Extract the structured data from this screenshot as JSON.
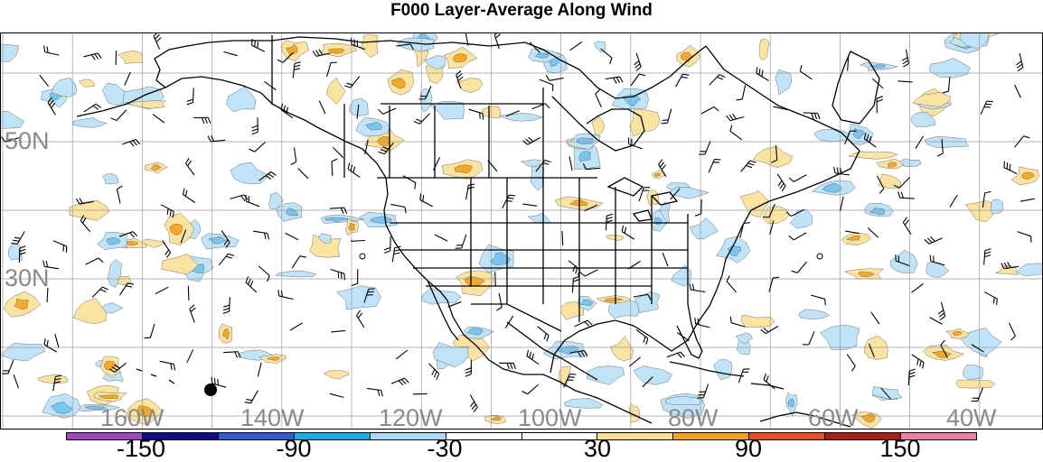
{
  "title": "F000 Layer-Average Along Wind",
  "lat_labels": [
    "50N",
    "30N"
  ],
  "lon_labels": [
    "160W",
    "140W",
    "120W",
    "100W",
    "80W",
    "60W",
    "40W"
  ],
  "colorbar": {
    "labels": [
      "-150",
      "-90",
      "-30",
      "30",
      "90",
      "150"
    ],
    "colors": [
      "#9e46c4",
      "#0d0d8a",
      "#2e5cd3",
      "#18b0ea",
      "#a9dcf5",
      "#ffffff",
      "#ffffff",
      "#f7e08a",
      "#f5a21c",
      "#e8501f",
      "#aa1d1d",
      "#ee7fab"
    ]
  },
  "fill_colors": {
    "light_blue": "#bfe3f7",
    "blue": "#78c6ef",
    "light_orange": "#fbe3a0",
    "orange": "#f7a825"
  }
}
